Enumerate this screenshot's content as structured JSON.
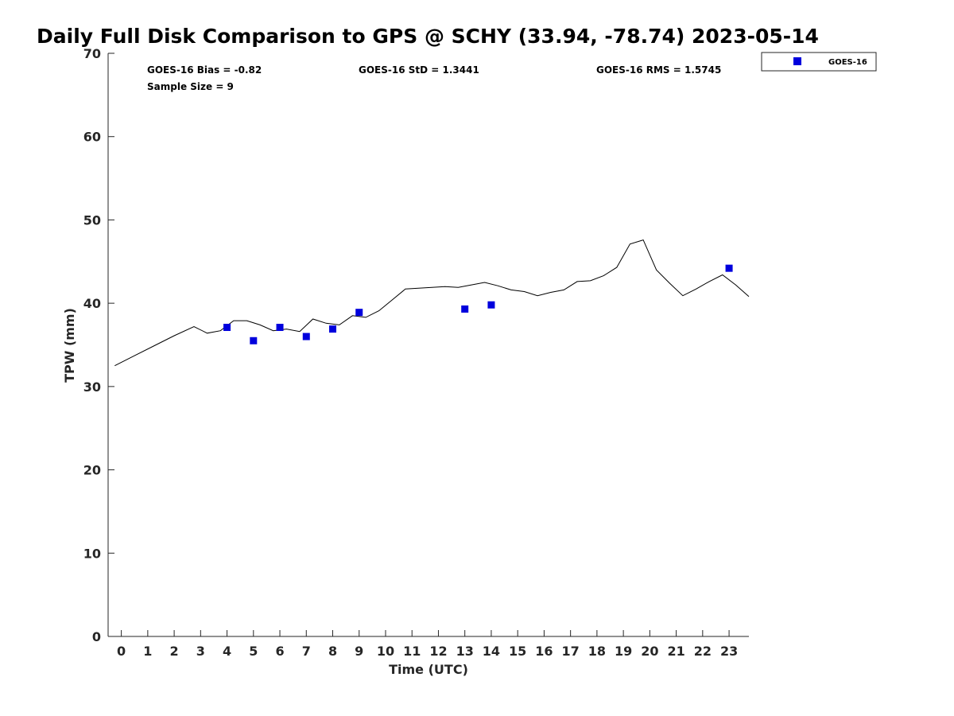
{
  "chart_data": {
    "type": "scatter",
    "title": "Daily Full Disk Comparison to GPS @ SCHY (33.94, -78.74) 2023-05-14",
    "xlabel": "Time (UTC)",
    "ylabel": "TPW (mm)",
    "xlim": [
      -0.5,
      23.75
    ],
    "ylim": [
      0,
      70
    ],
    "x_ticks": [
      0,
      1,
      2,
      3,
      4,
      5,
      6,
      7,
      8,
      9,
      10,
      11,
      12,
      13,
      14,
      15,
      16,
      17,
      18,
      19,
      20,
      21,
      22,
      23
    ],
    "y_ticks": [
      0,
      10,
      20,
      30,
      40,
      50,
      60,
      70
    ],
    "grid": false,
    "legend_position": "top-right, outside plot",
    "stats": {
      "bias": "GOES-16 Bias = -0.82",
      "std": "GOES-16 StD = 1.3441",
      "rms": "GOES-16 RMS = 1.5745",
      "sample_size": "Sample Size = 9"
    },
    "series": [
      {
        "name": "GOES-16",
        "kind": "markers",
        "marker": "square",
        "color": "#0000dd",
        "x": [
          4.0,
          5.0,
          6.0,
          7.0,
          8.0,
          9.0,
          13.0,
          14.0,
          23.0
        ],
        "y": [
          37.1,
          35.5,
          37.1,
          36.0,
          36.9,
          38.9,
          39.3,
          39.8,
          44.2
        ]
      },
      {
        "kind": "line",
        "color": "#000000",
        "x": [
          -0.25,
          0.5,
          1.25,
          2.0,
          2.75,
          3.25,
          3.75,
          4.25,
          4.75,
          5.25,
          5.75,
          6.25,
          6.75,
          7.25,
          7.75,
          8.25,
          8.75,
          9.25,
          9.75,
          10.25,
          10.75,
          11.25,
          11.75,
          12.25,
          12.75,
          13.25,
          13.75,
          14.25,
          14.75,
          15.25,
          15.75,
          16.25,
          16.75,
          17.25,
          17.75,
          18.25,
          18.75,
          19.25,
          19.75,
          20.25,
          20.75,
          21.25,
          21.75,
          22.25,
          22.75,
          23.25,
          23.75
        ],
        "y": [
          32.5,
          33.7,
          34.9,
          36.1,
          37.2,
          36.4,
          36.7,
          37.9,
          37.9,
          37.4,
          36.7,
          36.9,
          36.6,
          38.1,
          37.6,
          37.4,
          38.5,
          38.3,
          39.1,
          40.4,
          41.7,
          41.8,
          41.9,
          42.0,
          41.9,
          42.2,
          42.5,
          42.1,
          41.6,
          41.4,
          40.9,
          41.3,
          41.6,
          42.6,
          42.7,
          43.3,
          44.3,
          47.1,
          47.6,
          44.0,
          42.4,
          40.9,
          41.7,
          42.6,
          43.4,
          42.2,
          40.8
        ]
      }
    ]
  }
}
